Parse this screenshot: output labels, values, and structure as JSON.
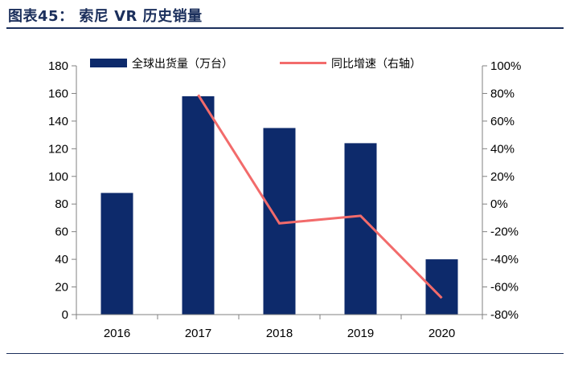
{
  "header": {
    "title": "图表45： 索尼 VR 历史销量"
  },
  "chart_data": {
    "type": "bar",
    "categories": [
      "2016",
      "2017",
      "2018",
      "2019",
      "2020"
    ],
    "series": [
      {
        "name": "全球出货量（万台）",
        "type": "bar",
        "axis": "left",
        "values": [
          88,
          158,
          135,
          124,
          40
        ]
      },
      {
        "name": "同比增速（右轴）",
        "type": "line",
        "axis": "right",
        "values": [
          null,
          0.79,
          -0.14,
          -0.085,
          -0.68
        ]
      }
    ],
    "left_axis": {
      "min": 0,
      "max": 180,
      "step": 20,
      "ticks": [
        "0",
        "20",
        "40",
        "60",
        "80",
        "100",
        "120",
        "140",
        "160",
        "180"
      ]
    },
    "right_axis": {
      "min": -0.8,
      "max": 1.0,
      "step": 0.2,
      "ticks": [
        "-80%",
        "-60%",
        "-40%",
        "-20%",
        "0%",
        "20%",
        "40%",
        "60%",
        "80%",
        "100%"
      ]
    },
    "grid": false,
    "legend_position": "top",
    "colors": {
      "bar": "#0d2a6b",
      "line": "#f26b6b",
      "axis": "#808080"
    }
  }
}
